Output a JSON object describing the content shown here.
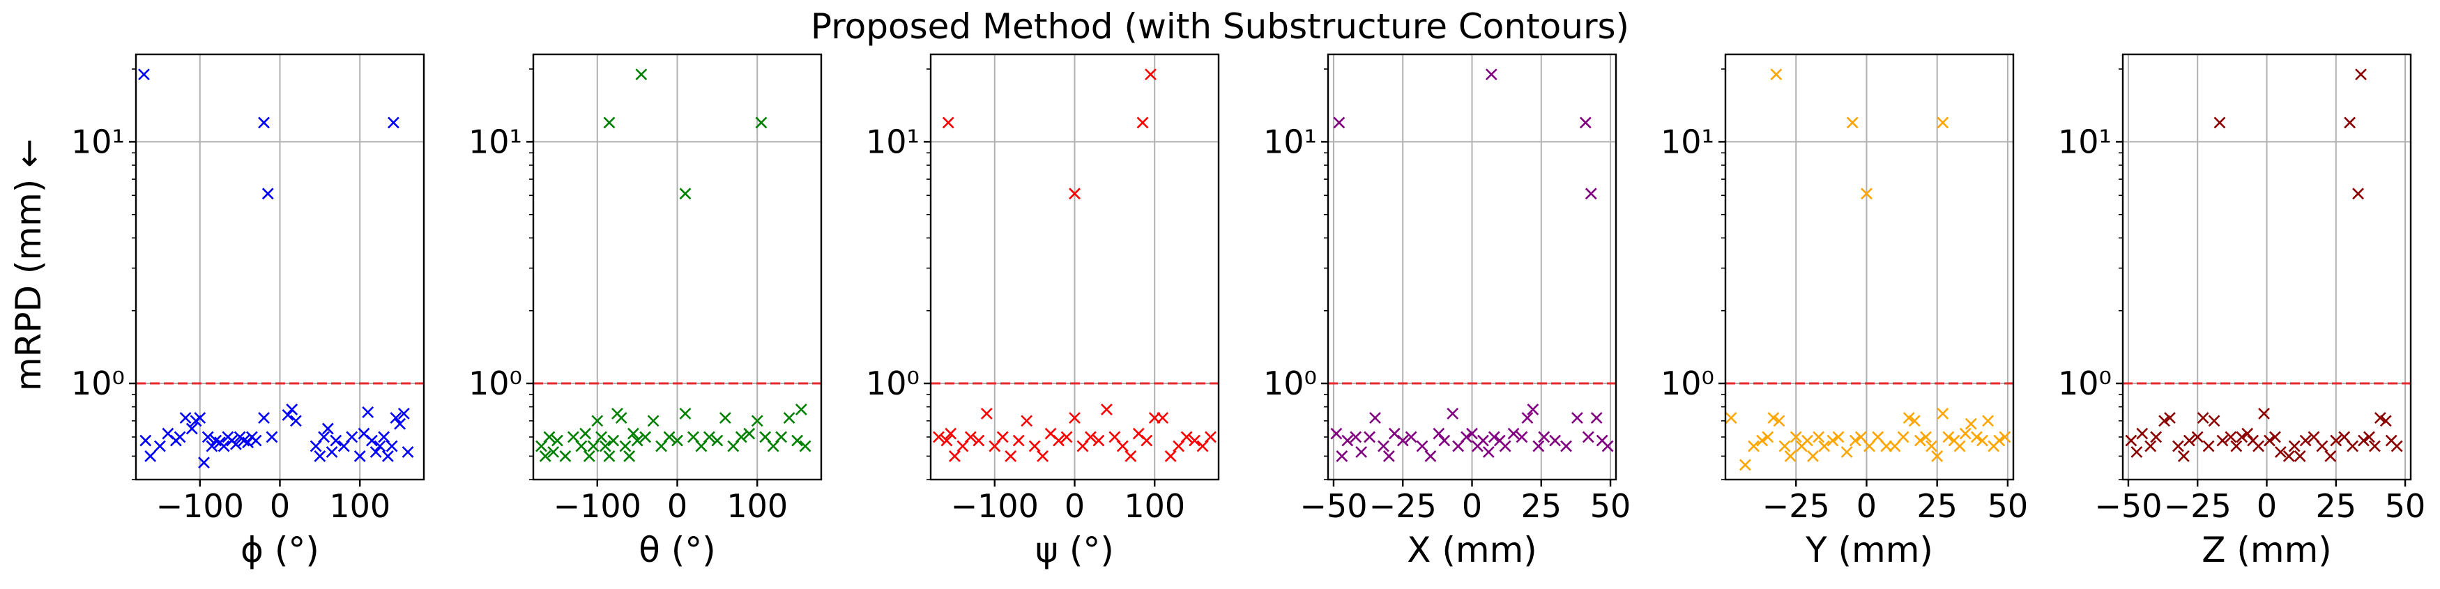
{
  "chart_data": {
    "type": "scatter",
    "title": "Proposed Method (with Substructure Contours)",
    "ylabel": "mRPD (mm) ←",
    "yscale": "log",
    "threshold": 1.0,
    "panels": [
      {
        "name": "phi",
        "xlabel": "ϕ (°)",
        "color": "#0000ff",
        "xlim": [
          -180,
          180
        ],
        "xticks": [
          -100,
          0,
          100
        ],
        "xtick_labels": [
          "−100",
          "0",
          "100"
        ],
        "ylim": [
          0.4,
          23
        ],
        "yticks": [
          1,
          10
        ],
        "ytick_labels": [
          "10⁰",
          "10¹"
        ],
        "x": [
          -170,
          -20,
          -15,
          142,
          -168,
          -162,
          -150,
          -140,
          -130,
          -125,
          -118,
          -110,
          -105,
          -100,
          -95,
          -90,
          -85,
          -80,
          -75,
          -70,
          -65,
          -60,
          -55,
          -50,
          -45,
          -40,
          -35,
          -30,
          -20,
          -10,
          10,
          15,
          20,
          45,
          50,
          55,
          60,
          65,
          70,
          80,
          90,
          100,
          105,
          110,
          115,
          120,
          125,
          130,
          135,
          140,
          145,
          150,
          155,
          160
        ],
        "y": [
          19,
          12,
          6.1,
          12,
          0.58,
          0.5,
          0.55,
          0.62,
          0.58,
          0.6,
          0.72,
          0.65,
          0.7,
          0.72,
          0.47,
          0.6,
          0.55,
          0.58,
          0.57,
          0.55,
          0.6,
          0.58,
          0.56,
          0.6,
          0.58,
          0.57,
          0.6,
          0.58,
          0.72,
          0.6,
          0.74,
          0.78,
          0.7,
          0.55,
          0.5,
          0.6,
          0.65,
          0.52,
          0.58,
          0.55,
          0.6,
          0.5,
          0.62,
          0.76,
          0.58,
          0.52,
          0.55,
          0.6,
          0.5,
          0.55,
          0.72,
          0.68,
          0.75,
          0.52
        ]
      },
      {
        "name": "theta",
        "xlabel": "θ (°)",
        "color": "#008000",
        "xlim": [
          -180,
          180
        ],
        "xticks": [
          -100,
          0,
          100
        ],
        "xtick_labels": [
          "−100",
          "0",
          "100"
        ],
        "ylim": [
          0.4,
          23
        ],
        "yticks": [
          1,
          10
        ],
        "ytick_labels": [
          "10⁰",
          "10¹"
        ],
        "x": [
          -85,
          -45,
          10,
          105,
          -170,
          -165,
          -160,
          -155,
          -150,
          -140,
          -130,
          -120,
          -115,
          -110,
          -105,
          -100,
          -95,
          -90,
          -85,
          -80,
          -75,
          -70,
          -65,
          -60,
          -55,
          -50,
          -40,
          -30,
          -20,
          -10,
          0,
          10,
          20,
          30,
          40,
          50,
          60,
          70,
          80,
          90,
          100,
          110,
          120,
          130,
          140,
          150,
          155,
          160
        ],
        "y": [
          12,
          19,
          6.1,
          12,
          0.55,
          0.5,
          0.6,
          0.52,
          0.58,
          0.5,
          0.6,
          0.55,
          0.62,
          0.5,
          0.55,
          0.7,
          0.6,
          0.55,
          0.5,
          0.58,
          0.75,
          0.72,
          0.55,
          0.5,
          0.62,
          0.58,
          0.6,
          0.7,
          0.55,
          0.6,
          0.58,
          0.75,
          0.6,
          0.55,
          0.6,
          0.58,
          0.72,
          0.55,
          0.6,
          0.62,
          0.7,
          0.6,
          0.55,
          0.6,
          0.72,
          0.58,
          0.78,
          0.55
        ]
      },
      {
        "name": "psi",
        "xlabel": "ψ (°)",
        "color": "#ff0000",
        "xlim": [
          -180,
          180
        ],
        "xticks": [
          -100,
          0,
          100
        ],
        "xtick_labels": [
          "−100",
          "0",
          "100"
        ],
        "ylim": [
          0.4,
          23
        ],
        "yticks": [
          1,
          10
        ],
        "ytick_labels": [
          "10⁰",
          "10¹"
        ],
        "x": [
          -158,
          0,
          85,
          95,
          -170,
          -160,
          -155,
          -150,
          -140,
          -130,
          -120,
          -110,
          -100,
          -90,
          -80,
          -70,
          -60,
          -50,
          -40,
          -30,
          -20,
          -10,
          0,
          10,
          20,
          30,
          40,
          50,
          60,
          70,
          80,
          90,
          100,
          110,
          120,
          130,
          140,
          150,
          160,
          170
        ],
        "y": [
          12,
          6.1,
          12,
          19,
          0.6,
          0.58,
          0.62,
          0.5,
          0.55,
          0.6,
          0.58,
          0.75,
          0.55,
          0.6,
          0.5,
          0.58,
          0.7,
          0.55,
          0.5,
          0.62,
          0.58,
          0.6,
          0.72,
          0.55,
          0.6,
          0.58,
          0.78,
          0.6,
          0.55,
          0.5,
          0.62,
          0.58,
          0.72,
          0.72,
          0.5,
          0.55,
          0.6,
          0.58,
          0.55,
          0.6
        ]
      },
      {
        "name": "X",
        "xlabel": "X (mm)",
        "color": "#800080",
        "xlim": [
          -52,
          52
        ],
        "xticks": [
          -50,
          -25,
          0,
          25,
          50
        ],
        "xtick_labels": [
          "−50",
          "−25",
          "0",
          "25",
          "50"
        ],
        "ylim": [
          0.4,
          23
        ],
        "yticks": [
          1,
          10
        ],
        "ytick_labels": [
          "10⁰",
          "10¹"
        ],
        "x": [
          -48,
          7,
          41,
          43,
          -49,
          -47,
          -45,
          -42,
          -40,
          -37,
          -35,
          -32,
          -30,
          -28,
          -25,
          -22,
          -18,
          -15,
          -12,
          -10,
          -7,
          -5,
          -2,
          0,
          2,
          4,
          6,
          8,
          10,
          12,
          15,
          18,
          20,
          22,
          24,
          26,
          30,
          34,
          38,
          42,
          45,
          47,
          49
        ],
        "y": [
          12,
          19,
          12,
          6.1,
          0.62,
          0.5,
          0.58,
          0.6,
          0.52,
          0.6,
          0.72,
          0.55,
          0.5,
          0.62,
          0.58,
          0.6,
          0.55,
          0.5,
          0.62,
          0.58,
          0.75,
          0.55,
          0.6,
          0.62,
          0.55,
          0.58,
          0.52,
          0.6,
          0.58,
          0.55,
          0.62,
          0.6,
          0.72,
          0.78,
          0.55,
          0.6,
          0.58,
          0.55,
          0.72,
          0.6,
          0.72,
          0.58,
          0.55
        ]
      },
      {
        "name": "Y",
        "xlabel": "Y (mm)",
        "color": "#ffa500",
        "xlim": [
          -50,
          52
        ],
        "xticks": [
          -25,
          0,
          25,
          50
        ],
        "xtick_labels": [
          "−25",
          "0",
          "25",
          "50"
        ],
        "ylim": [
          0.4,
          23
        ],
        "yticks": [
          1,
          10
        ],
        "ytick_labels": [
          "10⁰",
          "10¹"
        ],
        "x": [
          -32,
          -5,
          0,
          27,
          -48,
          -43,
          -40,
          -37,
          -35,
          -33,
          -31,
          -29,
          -27,
          -25,
          -23,
          -21,
          -19,
          -17,
          -15,
          -12,
          -10,
          -7,
          -4,
          -2,
          1,
          4,
          7,
          10,
          13,
          15,
          17,
          19,
          21,
          23,
          25,
          27,
          29,
          31,
          33,
          35,
          37,
          39,
          41,
          43,
          45,
          47,
          49
        ],
        "y": [
          19,
          12,
          6.1,
          12,
          0.72,
          0.46,
          0.55,
          0.58,
          0.6,
          0.72,
          0.7,
          0.55,
          0.5,
          0.6,
          0.55,
          0.58,
          0.5,
          0.6,
          0.55,
          0.58,
          0.6,
          0.52,
          0.58,
          0.6,
          0.55,
          0.6,
          0.55,
          0.55,
          0.6,
          0.72,
          0.7,
          0.58,
          0.6,
          0.55,
          0.5,
          0.75,
          0.6,
          0.58,
          0.55,
          0.62,
          0.68,
          0.6,
          0.58,
          0.7,
          0.55,
          0.58,
          0.6
        ]
      },
      {
        "name": "Z",
        "xlabel": "Z (mm)",
        "color": "#8b0000",
        "xlim": [
          -52,
          52
        ],
        "xticks": [
          -50,
          -25,
          0,
          25,
          50
        ],
        "xtick_labels": [
          "−50",
          "−25",
          "0",
          "25",
          "50"
        ],
        "ylim": [
          0.4,
          23
        ],
        "yticks": [
          1,
          10
        ],
        "ytick_labels": [
          "10⁰",
          "10¹"
        ],
        "x": [
          -17,
          30,
          33,
          34,
          -49,
          -47,
          -45,
          -42,
          -40,
          -37,
          -35,
          -32,
          -30,
          -28,
          -25,
          -23,
          -21,
          -19,
          -16,
          -13,
          -11,
          -9,
          -7,
          -5,
          -3,
          -1,
          1,
          3,
          5,
          8,
          10,
          12,
          14,
          17,
          20,
          23,
          25,
          28,
          31,
          35,
          37,
          39,
          41,
          43,
          45,
          47
        ],
        "y": [
          12,
          12,
          6.1,
          19,
          0.58,
          0.52,
          0.62,
          0.55,
          0.6,
          0.7,
          0.72,
          0.55,
          0.5,
          0.58,
          0.6,
          0.72,
          0.55,
          0.7,
          0.58,
          0.6,
          0.55,
          0.6,
          0.62,
          0.58,
          0.55,
          0.75,
          0.58,
          0.6,
          0.52,
          0.5,
          0.55,
          0.5,
          0.58,
          0.6,
          0.55,
          0.5,
          0.58,
          0.6,
          0.55,
          0.58,
          0.6,
          0.55,
          0.72,
          0.7,
          0.58,
          0.55
        ]
      }
    ]
  }
}
